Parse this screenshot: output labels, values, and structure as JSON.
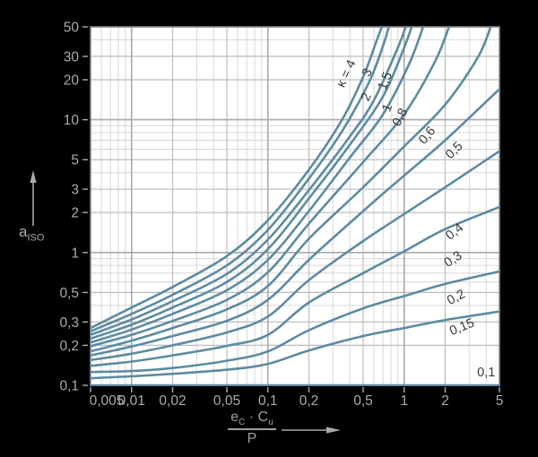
{
  "figure": {
    "background": "#000000",
    "plot_background": "#ffffff",
    "y_axis_title": {
      "main": "a",
      "sub": "ISO"
    },
    "x_axis_title": {
      "num_var1": "e",
      "num_sub1": "C",
      "dot": "·",
      "num_var2": "C",
      "num_sub2": "u",
      "denominator": "P"
    }
  },
  "chart_data": {
    "type": "line",
    "title": "",
    "x_scale": "log",
    "y_scale": "log",
    "x_range": [
      0.005,
      5
    ],
    "y_range": [
      0.1,
      50
    ],
    "grid": true,
    "legend_position": "labels-on-curves",
    "colors": {
      "curve": "#5d8ba1",
      "grid_minor": "#d7d7da",
      "grid_mid": "#bdbdc1",
      "grid_decade": "#a9a9ad",
      "border": "#86868a",
      "axis_text": "#ababab",
      "curve_label": "#3a3a3a"
    },
    "x_tick_labels": [
      {
        "v": 0.005,
        "label": "0,005"
      },
      {
        "v": 0.01,
        "label": "0,01"
      },
      {
        "v": 0.02,
        "label": "0,02"
      },
      {
        "v": 0.05,
        "label": "0,05"
      },
      {
        "v": 0.1,
        "label": "0,1"
      },
      {
        "v": 0.2,
        "label": "0,2"
      },
      {
        "v": 0.5,
        "label": "0,5"
      },
      {
        "v": 1,
        "label": "1"
      },
      {
        "v": 2,
        "label": "2"
      },
      {
        "v": 5,
        "label": "5"
      }
    ],
    "y_tick_labels": [
      {
        "v": 0.1,
        "label": "0,1"
      },
      {
        "v": 0.2,
        "label": "0,2"
      },
      {
        "v": 0.3,
        "label": "0,3"
      },
      {
        "v": 0.5,
        "label": "0,5"
      },
      {
        "v": 1,
        "label": "1"
      },
      {
        "v": 2,
        "label": "2"
      },
      {
        "v": 3,
        "label": "3"
      },
      {
        "v": 5,
        "label": "5"
      },
      {
        "v": 10,
        "label": "10"
      },
      {
        "v": 20,
        "label": "20"
      },
      {
        "v": 30,
        "label": "30"
      },
      {
        "v": 50,
        "label": "50"
      }
    ],
    "x_minor_grid": [
      0.006,
      0.007,
      0.008,
      0.009,
      0.02,
      0.03,
      0.04,
      0.05,
      0.06,
      0.07,
      0.08,
      0.09,
      0.2,
      0.3,
      0.4,
      0.5,
      0.6,
      0.7,
      0.8,
      0.9,
      2,
      3,
      4
    ],
    "x_mid_grid": [
      0.02,
      0.05,
      0.2,
      0.5,
      2
    ],
    "x_decade_grid": [
      0.01,
      0.1,
      1
    ],
    "y_minor_grid": [
      0.2,
      0.3,
      0.4,
      0.5,
      0.6,
      0.7,
      0.8,
      0.9,
      2,
      3,
      4,
      5,
      6,
      7,
      8,
      9,
      20,
      30,
      40
    ],
    "y_mid_grid": [
      0.2,
      0.3,
      0.5,
      2,
      3,
      5,
      20,
      30
    ],
    "y_decade_grid": [
      1,
      10
    ],
    "series": [
      {
        "name": "κ = 4",
        "kappa": 4,
        "label": {
          "text": "κ = 4",
          "x": 0.4,
          "y": 21.6,
          "rot": -65
        },
        "points": [
          [
            0.005,
            0.27
          ],
          [
            0.01,
            0.385
          ],
          [
            0.02,
            0.55
          ],
          [
            0.05,
            0.94
          ],
          [
            0.1,
            1.75
          ],
          [
            0.2,
            4.2
          ],
          [
            0.35,
            10
          ],
          [
            0.5,
            21
          ],
          [
            0.62,
            38
          ],
          [
            0.71,
            55
          ]
        ]
      },
      {
        "name": "3",
        "kappa": 3,
        "label": {
          "text": "3",
          "x": 0.57,
          "y": 22,
          "rot": -65
        },
        "points": [
          [
            0.005,
            0.255
          ],
          [
            0.01,
            0.345
          ],
          [
            0.02,
            0.48
          ],
          [
            0.05,
            0.8
          ],
          [
            0.1,
            1.48
          ],
          [
            0.2,
            3.6
          ],
          [
            0.35,
            8.2
          ],
          [
            0.55,
            19
          ],
          [
            0.7,
            36
          ],
          [
            0.79,
            55
          ]
        ]
      },
      {
        "name": "2",
        "kappa": 2,
        "label": {
          "text": "2",
          "x": 0.56,
          "y": 14.4,
          "rot": -65
        },
        "points": [
          [
            0.005,
            0.24
          ],
          [
            0.01,
            0.313
          ],
          [
            0.02,
            0.43
          ],
          [
            0.05,
            0.69
          ],
          [
            0.1,
            1.25
          ],
          [
            0.2,
            2.95
          ],
          [
            0.4,
            7.5
          ],
          [
            0.6,
            14
          ],
          [
            0.9,
            35
          ],
          [
            1.06,
            55
          ]
        ]
      },
      {
        "name": "1,5",
        "kappa": 1.5,
        "label": {
          "text": "1,5",
          "x": 0.77,
          "y": 19.1,
          "rot": -68
        },
        "points": [
          [
            0.005,
            0.225
          ],
          [
            0.01,
            0.286
          ],
          [
            0.02,
            0.385
          ],
          [
            0.05,
            0.6
          ],
          [
            0.1,
            1.06
          ],
          [
            0.2,
            2.55
          ],
          [
            0.4,
            6.5
          ],
          [
            0.7,
            15
          ],
          [
            1.0,
            35
          ],
          [
            1.17,
            55
          ]
        ]
      },
      {
        "name": "1",
        "kappa": 1,
        "label": {
          "text": "1",
          "x": 0.8,
          "y": 12,
          "rot": -68
        },
        "points": [
          [
            0.005,
            0.21
          ],
          [
            0.01,
            0.263
          ],
          [
            0.02,
            0.345
          ],
          [
            0.05,
            0.52
          ],
          [
            0.1,
            0.88
          ],
          [
            0.2,
            2.05
          ],
          [
            0.4,
            5.2
          ],
          [
            0.7,
            11
          ],
          [
            1.1,
            27
          ],
          [
            1.42,
            55
          ]
        ]
      },
      {
        "name": "0,8",
        "kappa": 0.8,
        "label": {
          "text": "0,8",
          "x": 0.99,
          "y": 10.1,
          "rot": -62
        },
        "points": [
          [
            0.005,
            0.197
          ],
          [
            0.01,
            0.24
          ],
          [
            0.02,
            0.305
          ],
          [
            0.05,
            0.44
          ],
          [
            0.1,
            0.71
          ],
          [
            0.2,
            1.65
          ],
          [
            0.5,
            4.8
          ],
          [
            1,
            11
          ],
          [
            1.7,
            28
          ],
          [
            2.2,
            55
          ]
        ]
      },
      {
        "name": "0,6",
        "kappa": 0.6,
        "label": {
          "text": "0,6",
          "x": 1.55,
          "y": 7.3,
          "rot": -50
        },
        "points": [
          [
            0.005,
            0.18
          ],
          [
            0.01,
            0.217
          ],
          [
            0.02,
            0.27
          ],
          [
            0.05,
            0.373
          ],
          [
            0.1,
            0.56
          ],
          [
            0.2,
            1.27
          ],
          [
            0.5,
            3.1
          ],
          [
            1,
            6.3
          ],
          [
            2,
            13
          ],
          [
            3.5,
            30
          ],
          [
            4.45,
            55
          ]
        ]
      },
      {
        "name": "0,5",
        "kappa": 0.5,
        "label": {
          "text": "0,5",
          "x": 2.44,
          "y": 5.6,
          "rot": -45
        },
        "points": [
          [
            0.005,
            0.168
          ],
          [
            0.01,
            0.196
          ],
          [
            0.02,
            0.235
          ],
          [
            0.05,
            0.306
          ],
          [
            0.1,
            0.44
          ],
          [
            0.2,
            0.88
          ],
          [
            0.5,
            2.05
          ],
          [
            1,
            3.8
          ],
          [
            2,
            7.0
          ],
          [
            5,
            17
          ]
        ]
      },
      {
        "name": "0,4",
        "kappa": 0.4,
        "label": {
          "text": "0,4",
          "x": 2.44,
          "y": 1.36,
          "rot": -38
        },
        "points": [
          [
            0.005,
            0.155
          ],
          [
            0.01,
            0.173
          ],
          [
            0.02,
            0.2
          ],
          [
            0.05,
            0.25
          ],
          [
            0.1,
            0.33
          ],
          [
            0.2,
            0.62
          ],
          [
            0.5,
            1.22
          ],
          [
            1,
            1.95
          ],
          [
            2,
            3.1
          ],
          [
            5,
            5.8
          ]
        ]
      },
      {
        "name": "0,3",
        "kappa": 0.3,
        "label": {
          "text": "0,3",
          "x": 2.37,
          "y": 0.84,
          "rot": -33
        },
        "points": [
          [
            0.005,
            0.14
          ],
          [
            0.01,
            0.151
          ],
          [
            0.02,
            0.168
          ],
          [
            0.05,
            0.198
          ],
          [
            0.1,
            0.24
          ],
          [
            0.2,
            0.42
          ],
          [
            0.5,
            0.7
          ],
          [
            1,
            1.02
          ],
          [
            2,
            1.5
          ],
          [
            5,
            2.2
          ]
        ]
      },
      {
        "name": "0,2",
        "kappa": 0.2,
        "label": {
          "text": "0,2",
          "x": 2.48,
          "y": 0.433,
          "rot": -28
        },
        "points": [
          [
            0.005,
            0.126
          ],
          [
            0.01,
            0.128
          ],
          [
            0.02,
            0.135
          ],
          [
            0.05,
            0.153
          ],
          [
            0.1,
            0.18
          ],
          [
            0.2,
            0.26
          ],
          [
            0.5,
            0.38
          ],
          [
            1,
            0.47
          ],
          [
            2,
            0.58
          ],
          [
            5,
            0.72
          ]
        ]
      },
      {
        "name": "0,15",
        "kappa": 0.15,
        "label": {
          "text": "0,15",
          "x": 2.72,
          "y": 0.258,
          "rot": -22
        },
        "points": [
          [
            0.005,
            0.113
          ],
          [
            0.01,
            0.117
          ],
          [
            0.02,
            0.122
          ],
          [
            0.05,
            0.131
          ],
          [
            0.1,
            0.145
          ],
          [
            0.2,
            0.183
          ],
          [
            0.5,
            0.235
          ],
          [
            1,
            0.27
          ],
          [
            2,
            0.31
          ],
          [
            5,
            0.36
          ]
        ]
      },
      {
        "name": "0,1",
        "kappa": 0.1,
        "label": {
          "text": "0,1",
          "x": 4.0,
          "y": 0.117,
          "rot": 0
        },
        "points": [
          [
            0.005,
            0.1
          ],
          [
            5,
            0.1
          ]
        ]
      }
    ]
  }
}
